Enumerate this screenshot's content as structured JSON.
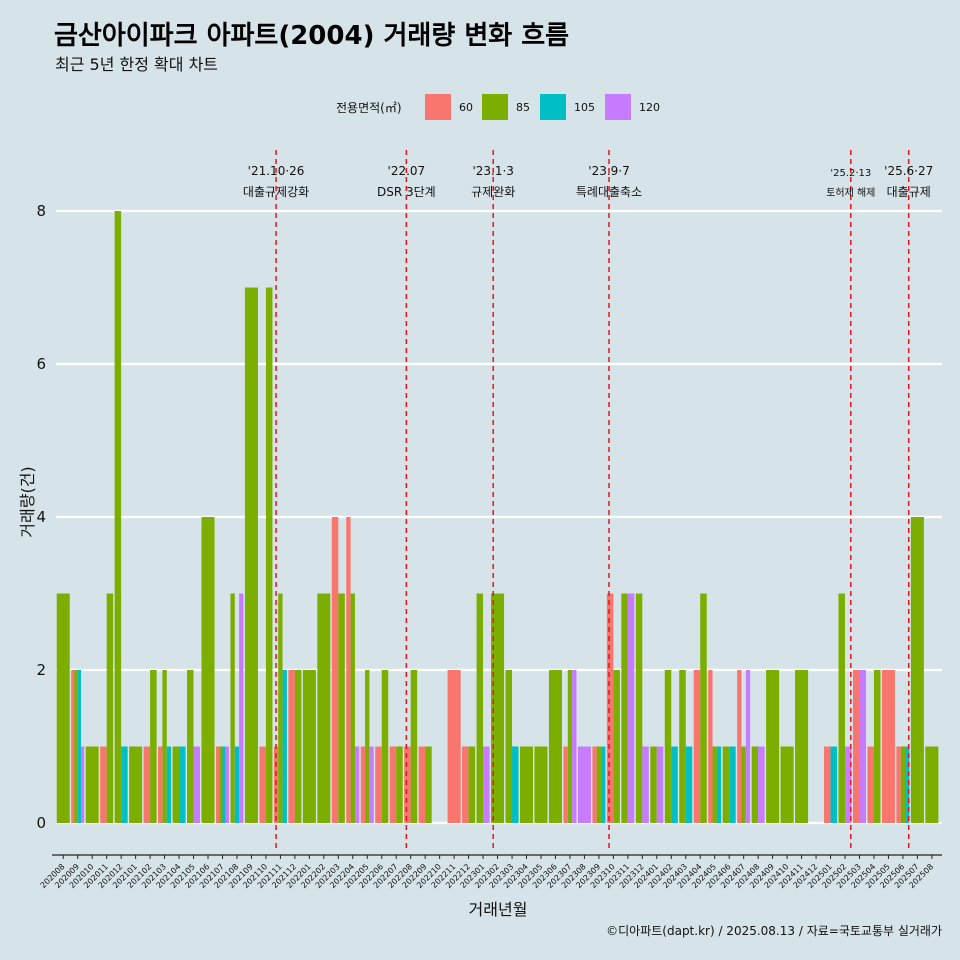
{
  "title": "금산아이파크 아파트(2004) 거래량 변화 흐름",
  "subtitle": "최근 5년 한정 확대 차트",
  "caption": "©디아파트(dapt.kr) / 2025.08.13 / 자료=국토교통부 실거래가",
  "chart_data": {
    "type": "bar",
    "xlabel": "거래년월",
    "ylabel": "거래량(건)",
    "ylim": [
      0,
      8
    ],
    "yticks": [
      0,
      2,
      4,
      6,
      8
    ],
    "grid": true,
    "legend": {
      "title": "전용면적(㎡)",
      "position": "top",
      "entries": [
        {
          "label": "60",
          "color": "#F8766D"
        },
        {
          "label": "85",
          "color": "#7CAE00"
        },
        {
          "label": "105",
          "color": "#00BFC4"
        },
        {
          "label": "120",
          "color": "#C77CFF"
        }
      ]
    },
    "categories": [
      "202008",
      "202009",
      "202010",
      "202011",
      "202012",
      "202101",
      "202102",
      "202103",
      "202104",
      "202105",
      "202106",
      "202107",
      "202108",
      "202109",
      "202110",
      "202111",
      "202112",
      "202201",
      "202202",
      "202203",
      "202204",
      "202205",
      "202206",
      "202207",
      "202208",
      "202209",
      "202210",
      "202211",
      "202212",
      "202301",
      "202302",
      "202303",
      "202304",
      "202305",
      "202306",
      "202307",
      "202308",
      "202309",
      "202310",
      "202311",
      "202312",
      "202401",
      "202402",
      "202403",
      "202404",
      "202405",
      "202406",
      "202407",
      "202408",
      "202409",
      "202410",
      "202411",
      "202412",
      "202501",
      "202502",
      "202503",
      "202504",
      "202505",
      "202506",
      "202507",
      "202508"
    ],
    "tick_labels": [
      "202008",
      "202009",
      "202010",
      "202011",
      "202012",
      "202101",
      "202102",
      "202103",
      "202104",
      "202105",
      "202106",
      "202107",
      "202108",
      "202109",
      "202110",
      "202111",
      "202112",
      "202201",
      "202202",
      "202203",
      "202204",
      "202205",
      "202206",
      "202207",
      "202208",
      "202209",
      "202210",
      "202211",
      "202212",
      "202301",
      "202302",
      "202303",
      "202304",
      "202305",
      "202306",
      "202307",
      "202308",
      "202309",
      "202310",
      "202311",
      "202312",
      "202401",
      "202402",
      "202403",
      "202404",
      "202405",
      "202406",
      "202407",
      "202408",
      "202409",
      "202410",
      "202411",
      "202412",
      "202501",
      "202502",
      "202503",
      "202504",
      "202505",
      "202506",
      "202507",
      "202508"
    ],
    "series": [
      {
        "name": "60",
        "values": [
          0,
          2,
          0,
          1,
          0,
          0,
          1,
          1,
          0,
          0,
          0,
          1,
          0,
          0,
          1,
          1,
          2,
          0,
          0,
          4,
          4,
          1,
          1,
          1,
          1,
          1,
          0,
          2,
          1,
          0,
          0,
          0,
          0,
          0,
          0,
          1,
          0,
          1,
          3,
          0,
          0,
          0,
          0,
          0,
          2,
          2,
          0,
          2,
          0,
          0,
          0,
          0,
          0,
          1,
          0,
          2,
          1,
          2,
          1,
          0,
          0
        ]
      },
      {
        "name": "85",
        "values": [
          3,
          2,
          1,
          3,
          8,
          1,
          2,
          2,
          1,
          2,
          4,
          1,
          3,
          7,
          7,
          3,
          2,
          2,
          3,
          3,
          3,
          2,
          2,
          1,
          2,
          1,
          0,
          0,
          1,
          3,
          3,
          2,
          1,
          1,
          2,
          2,
          0,
          1,
          2,
          3,
          3,
          1,
          2,
          2,
          3,
          1,
          1,
          1,
          1,
          2,
          1,
          2,
          0,
          0,
          3,
          0,
          2,
          0,
          1,
          4,
          1
        ]
      },
      {
        "name": "105",
        "values": [
          0,
          2,
          0,
          0,
          1,
          0,
          0,
          1,
          1,
          0,
          0,
          1,
          1,
          0,
          0,
          2,
          0,
          0,
          0,
          0,
          0,
          0,
          0,
          0,
          0,
          0,
          0,
          0,
          0,
          0,
          0,
          1,
          0,
          0,
          0,
          0,
          0,
          1,
          0,
          0,
          0,
          0,
          1,
          1,
          0,
          1,
          1,
          0,
          0,
          0,
          0,
          0,
          0,
          1,
          0,
          0,
          0,
          0,
          1,
          0,
          0
        ]
      },
      {
        "name": "120",
        "values": [
          0,
          1,
          0,
          0,
          0,
          0,
          0,
          0,
          0,
          1,
          0,
          1,
          3,
          0,
          0,
          0,
          0,
          0,
          0,
          0,
          1,
          1,
          0,
          0,
          0,
          0,
          0,
          0,
          0,
          1,
          0,
          0,
          0,
          0,
          0,
          2,
          1,
          0,
          0,
          3,
          1,
          1,
          0,
          0,
          0,
          0,
          0,
          2,
          1,
          0,
          0,
          0,
          0,
          0,
          1,
          2,
          0,
          0,
          0,
          0,
          0
        ]
      }
    ],
    "annotations": [
      {
        "x_index": 14.7,
        "date": "'21.10·26",
        "text": "대출규제강화",
        "small": false
      },
      {
        "x_index": 23.7,
        "date": "'22.07",
        "text": "DSR 3단계",
        "small": false
      },
      {
        "x_index": 29.7,
        "date": "'23.1·3",
        "text": "규제완화",
        "small": false
      },
      {
        "x_index": 37.7,
        "date": "'23.9·7",
        "text": "특례대출축소",
        "small": false
      },
      {
        "x_index": 54.4,
        "date": "'25.2·13",
        "text": "토허제 해제",
        "small": true
      },
      {
        "x_index": 58.4,
        "date": "'25.6·27",
        "text": "대출규제",
        "small": false
      }
    ]
  }
}
